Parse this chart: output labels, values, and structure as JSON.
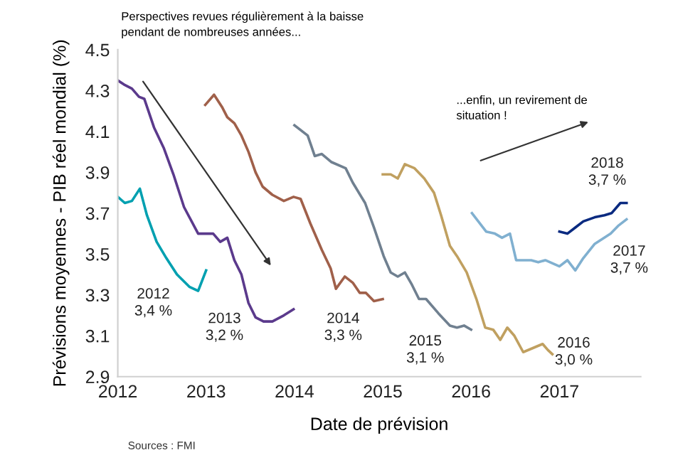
{
  "chart_data": {
    "type": "line",
    "xlabel": "Date de prévision",
    "ylabel": "Prévisions moyennes - PIB réel mondial (%)",
    "xlim": [
      2012,
      2017.92
    ],
    "xticks": [
      2012,
      2013,
      2014,
      2015,
      2016,
      2017
    ],
    "ylim": [
      2.9,
      4.5
    ],
    "yticks": [
      {
        "value": 2.9,
        "label": "2.9"
      },
      3.1,
      3.3,
      3.5,
      3.7,
      3.9,
      4.1,
      4.3,
      4.5
    ],
    "grid": false,
    "legend": false,
    "marker": "none",
    "line_style": "solid",
    "series": [
      {
        "color": "#00a0b0",
        "x": [
          2012.0,
          2012.08,
          2012.16,
          2012.25,
          2012.33,
          2012.44,
          2012.55,
          2012.67,
          2012.81,
          2012.91,
          2013.0
        ],
        "values": [
          3.78,
          3.75,
          3.76,
          3.82,
          3.69,
          3.56,
          3.48,
          3.4,
          3.34,
          3.32,
          3.42
        ]
      },
      {
        "color": "#5b3a8c",
        "x": [
          2012.0,
          2012.07,
          2012.16,
          2012.24,
          2012.3,
          2012.41,
          2012.52,
          2012.63,
          2012.75,
          2012.91,
          2013.0,
          2013.08,
          2013.16,
          2013.24,
          2013.32,
          2013.4,
          2013.48,
          2013.56,
          2013.65,
          2013.75,
          2013.88,
          2013.99
        ],
        "values": [
          4.35,
          4.33,
          4.31,
          4.27,
          4.26,
          4.12,
          4.02,
          3.89,
          3.73,
          3.6,
          3.6,
          3.6,
          3.56,
          3.58,
          3.47,
          3.4,
          3.26,
          3.19,
          3.17,
          3.17,
          3.2,
          3.23
        ]
      },
      {
        "color": "#a0604a",
        "x": [
          2012.99,
          2013.09,
          2013.18,
          2013.24,
          2013.32,
          2013.4,
          2013.48,
          2013.56,
          2013.64,
          2013.75,
          2013.88,
          2013.99,
          2014.07,
          2014.18,
          2014.31,
          2014.41,
          2014.47,
          2014.57,
          2014.66,
          2014.74,
          2014.81,
          2014.9,
          2015.0
        ],
        "values": [
          4.23,
          4.28,
          4.22,
          4.17,
          4.14,
          4.08,
          4.0,
          3.9,
          3.83,
          3.79,
          3.76,
          3.78,
          3.77,
          3.65,
          3.52,
          3.43,
          3.33,
          3.39,
          3.36,
          3.31,
          3.31,
          3.27,
          3.28
        ]
      },
      {
        "color": "#708090",
        "x": [
          2014.0,
          2014.15,
          2014.23,
          2014.31,
          2014.42,
          2014.58,
          2014.66,
          2014.8,
          2014.9,
          2015.01,
          2015.09,
          2015.17,
          2015.25,
          2015.33,
          2015.41,
          2015.49,
          2015.63,
          2015.76,
          2015.84,
          2015.92,
          2016.0
        ],
        "values": [
          4.13,
          4.08,
          3.98,
          3.99,
          3.95,
          3.92,
          3.85,
          3.75,
          3.63,
          3.49,
          3.41,
          3.39,
          3.41,
          3.35,
          3.28,
          3.28,
          3.21,
          3.15,
          3.14,
          3.15,
          3.13
        ]
      },
      {
        "color": "#c0a060",
        "x": [
          2015.0,
          2015.09,
          2015.17,
          2015.25,
          2015.36,
          2015.47,
          2015.58,
          2015.66,
          2015.76,
          2015.84,
          2015.95,
          2016.06,
          2016.16,
          2016.25,
          2016.33,
          2016.41,
          2016.49,
          2016.59,
          2016.7,
          2016.81,
          2016.87,
          2016.92
        ],
        "values": [
          3.89,
          3.89,
          3.87,
          3.94,
          3.92,
          3.87,
          3.8,
          3.69,
          3.54,
          3.49,
          3.41,
          3.28,
          3.14,
          3.13,
          3.08,
          3.14,
          3.1,
          3.02,
          3.04,
          3.06,
          3.03,
          3.01
        ]
      },
      {
        "color": "#80b0d0",
        "x": [
          2016.01,
          2016.17,
          2016.27,
          2016.35,
          2016.44,
          2016.51,
          2016.6,
          2016.68,
          2016.76,
          2016.84,
          2017.0,
          2017.09,
          2017.18,
          2017.27,
          2017.4,
          2017.58,
          2017.67,
          2017.76
        ],
        "values": [
          3.7,
          3.61,
          3.6,
          3.58,
          3.6,
          3.47,
          3.47,
          3.47,
          3.46,
          3.47,
          3.44,
          3.47,
          3.42,
          3.48,
          3.55,
          3.6,
          3.64,
          3.67
        ]
      },
      {
        "color": "#0a2a80",
        "x": [
          2017.0,
          2017.09,
          2017.18,
          2017.27,
          2017.4,
          2017.51,
          2017.59,
          2017.69,
          2017.76
        ],
        "values": [
          3.61,
          3.6,
          3.63,
          3.66,
          3.68,
          3.69,
          3.7,
          3.75,
          3.75
        ]
      }
    ],
    "annotations": [
      "Perspectives revues régulièrement à la baisse\npendant de nombreuses années...",
      "...enfin, un revirement de\nsituation !",
      "2012\n3,4 %",
      "2013\n3,2 %",
      "2014\n3,3 %",
      "2015\n3,1 %",
      "2016\n3,0 %",
      "2017\n3,7 %",
      "2018\n3,7 %",
      "Sources : FMI"
    ]
  }
}
